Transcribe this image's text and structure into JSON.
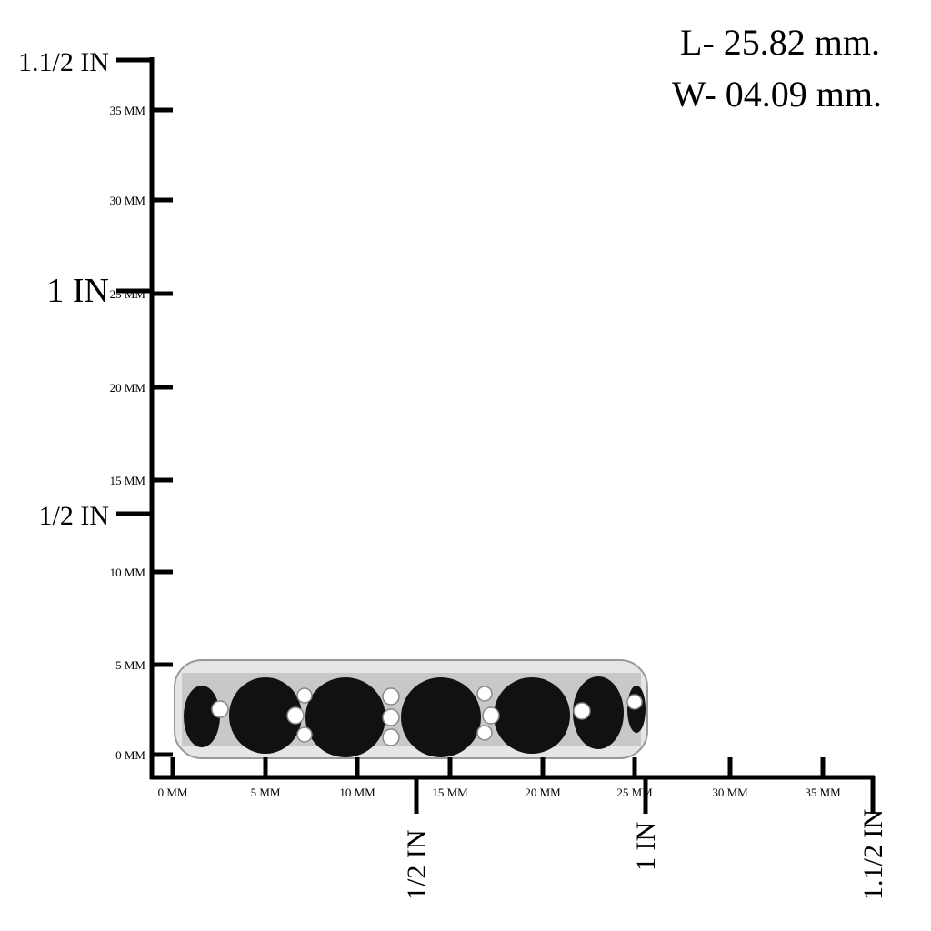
{
  "dimensions": {
    "length": "L- 25.82 mm.",
    "width": "W- 04.09 mm."
  },
  "ruler": {
    "y_mm_labels": [
      "0 MM",
      "5 MM",
      "10 MM",
      "15 MM",
      "20 MM",
      "25 MM",
      "30 MM",
      "35 MM"
    ],
    "y_inch_labels": [
      "1/2 IN",
      "1 IN",
      "1.1/2 IN"
    ],
    "x_mm_labels": [
      "0 MM",
      "5 MM",
      "10 MM",
      "15 MM",
      "20 MM",
      "25 MM",
      "30 MM",
      "35 MM"
    ],
    "x_inch_labels": [
      "1/2 IN",
      "1 IN",
      "1.1/2 IN"
    ]
  }
}
